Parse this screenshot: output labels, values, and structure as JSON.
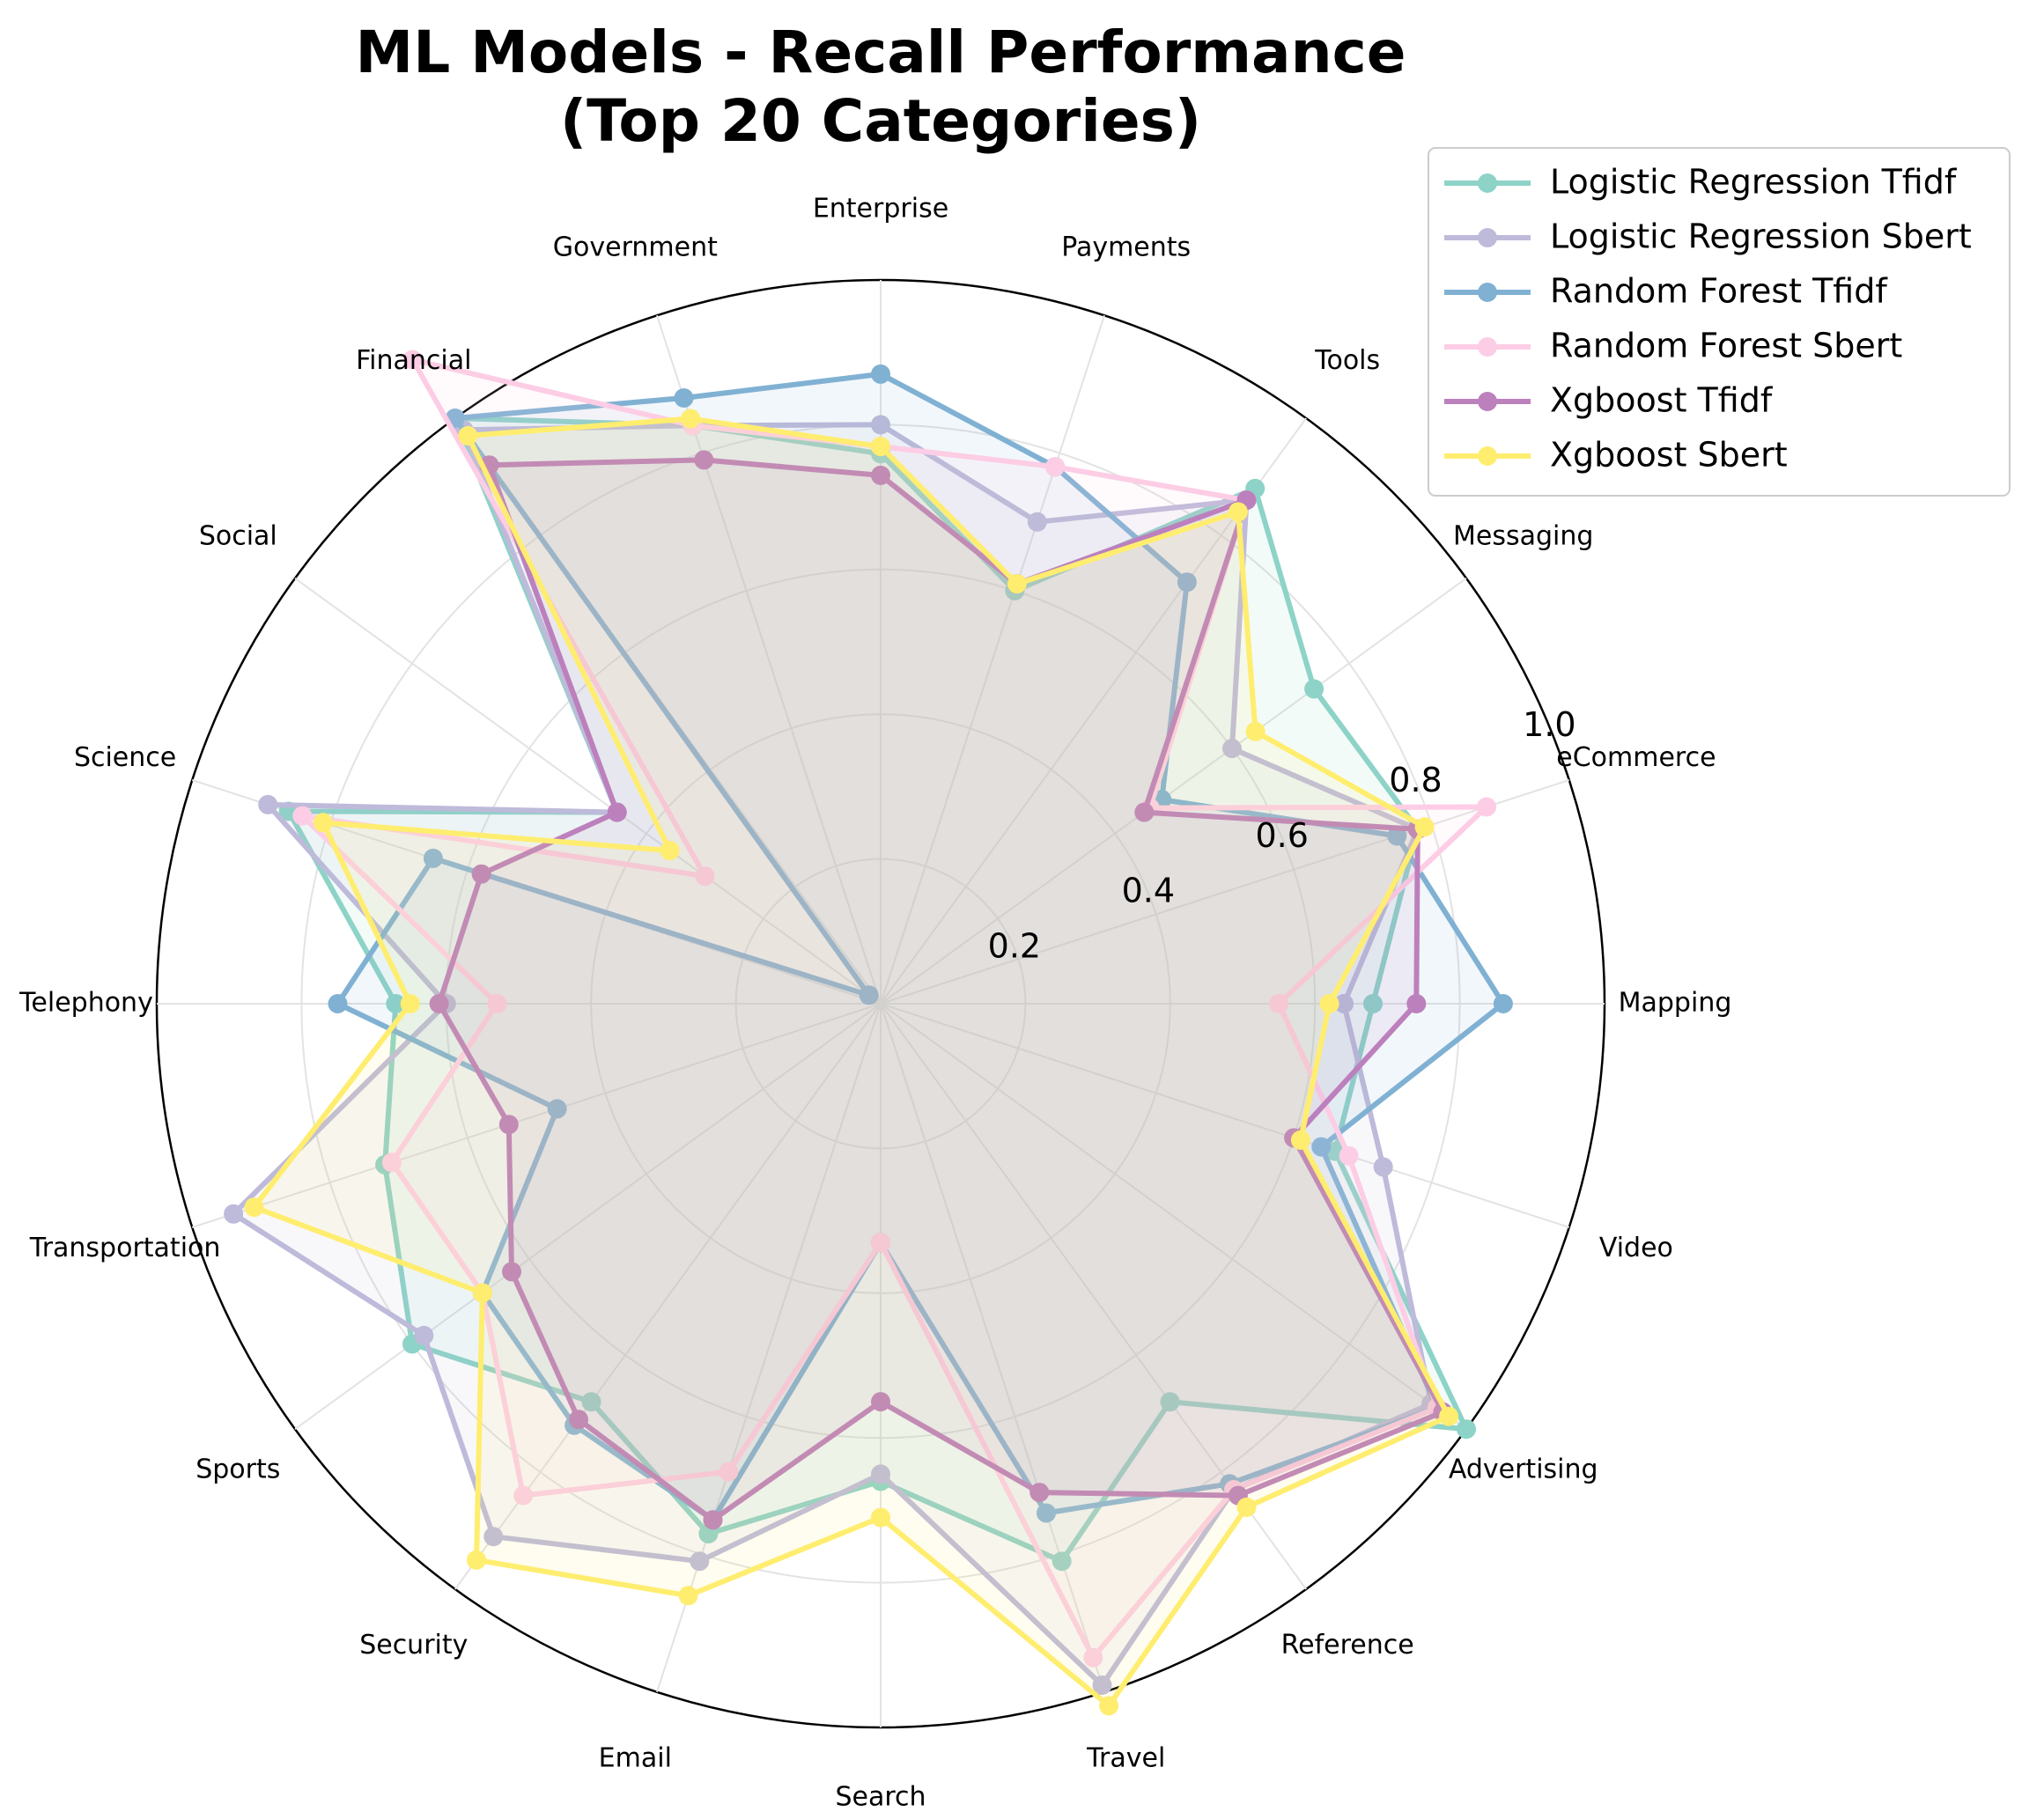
{
  "chart_data": {
    "type": "radar",
    "title": "ML Models - Recall Performance",
    "subtitle": "(Top 20 Categories)",
    "categories": [
      "Mapping",
      "eCommerce",
      "Messaging",
      "Tools",
      "Payments",
      "Enterprise",
      "Government",
      "Financial",
      "Social",
      "Science",
      "Telephony",
      "Transportation",
      "Sports",
      "Security",
      "Email",
      "Search",
      "Travel",
      "Reference",
      "Advertising",
      "Video"
    ],
    "rlim": [
      0,
      1.0
    ],
    "rticks": [
      0.2,
      0.4,
      0.6,
      0.8,
      1.0
    ],
    "rtick_labels": [
      "0.2",
      "0.4",
      "0.6",
      "0.8",
      "1.0"
    ],
    "grid": true,
    "legend_position": "top-right",
    "series": [
      {
        "name": "Logistic Regression Tfidf",
        "color": "#8dd3c7",
        "values": [
          0.68,
          0.78,
          0.74,
          0.88,
          0.6,
          0.76,
          0.84,
          1.0,
          0.45,
          0.86,
          0.67,
          0.72,
          0.8,
          0.68,
          0.77,
          0.66,
          0.81,
          0.68,
          1.0,
          0.66
        ]
      },
      {
        "name": "Logistic Regression Sbert",
        "color": "#bebada",
        "values": [
          0.64,
          0.78,
          0.6,
          0.86,
          0.7,
          0.8,
          0.84,
          0.98,
          0.45,
          0.89,
          0.6,
          0.94,
          0.78,
          0.91,
          0.81,
          0.65,
          0.99,
          0.83,
          0.94,
          0.73
        ]
      },
      {
        "name": "Random Forest Tfidf",
        "color": "#80b1d3",
        "values": [
          0.86,
          0.75,
          0.48,
          0.72,
          0.78,
          0.87,
          0.88,
          1.0,
          0.02,
          0.65,
          0.75,
          0.47,
          0.68,
          0.72,
          0.75,
          0.33,
          0.74,
          0.82,
          0.95,
          0.64
        ]
      },
      {
        "name": "Random Forest Sbert",
        "color": "#fccde5",
        "values": [
          0.55,
          0.88,
          0.46,
          0.86,
          0.78,
          0.77,
          0.84,
          1.1,
          0.3,
          0.84,
          0.53,
          0.71,
          0.68,
          0.84,
          0.68,
          0.33,
          0.95,
          0.83,
          0.95,
          0.68
        ]
      },
      {
        "name": "Xgboost Tfidf",
        "color": "#bc80bd",
        "values": [
          0.74,
          0.78,
          0.45,
          0.86,
          0.61,
          0.73,
          0.79,
          0.92,
          0.45,
          0.58,
          0.61,
          0.54,
          0.63,
          0.71,
          0.75,
          0.55,
          0.71,
          0.84,
          0.96,
          0.6
        ]
      },
      {
        "name": "Xgboost Sbert",
        "color": "#ffed6f",
        "values": [
          0.62,
          0.79,
          0.64,
          0.84,
          0.61,
          0.77,
          0.85,
          0.97,
          0.36,
          0.81,
          0.65,
          0.91,
          0.68,
          0.95,
          0.86,
          0.71,
          1.02,
          0.86,
          0.97,
          0.61
        ]
      }
    ]
  }
}
